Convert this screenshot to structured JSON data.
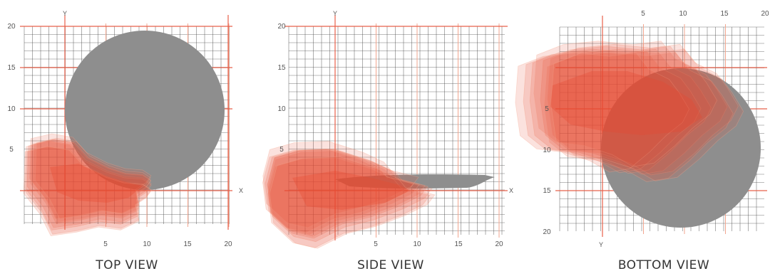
{
  "colors": {
    "grid_minor": "#4a4a4a",
    "grid_major": "#e8604a",
    "grid_major_soft": "#f2a68f",
    "object": "#8e8e8e",
    "hand_fill": "#e84a32",
    "hand_edge": "#f5a68c"
  },
  "views": [
    {
      "id": "top",
      "title": "TOP VIEW",
      "x_axis_label": "X",
      "y_axis_label": "Y",
      "x_ticks": [
        "5",
        "10",
        "15",
        "20"
      ],
      "y_ticks": [
        "20",
        "15",
        "10",
        "5"
      ],
      "object_shape": "circle"
    },
    {
      "id": "side",
      "title": "SIDE VIEW",
      "x_axis_label": "X",
      "y_axis_label": "Y",
      "x_ticks": [
        "5",
        "10",
        "15",
        "20"
      ],
      "y_ticks": [
        "20",
        "15",
        "10",
        "5"
      ],
      "object_shape": "elongated-sliver"
    },
    {
      "id": "bottom",
      "title": "BOTTOM VIEW",
      "y_axis_label": "Y",
      "x_ticks": [
        "5",
        "10",
        "15",
        "20"
      ],
      "y_ticks": [
        "5",
        "10",
        "15",
        "20"
      ],
      "object_shape": "circle"
    }
  ]
}
